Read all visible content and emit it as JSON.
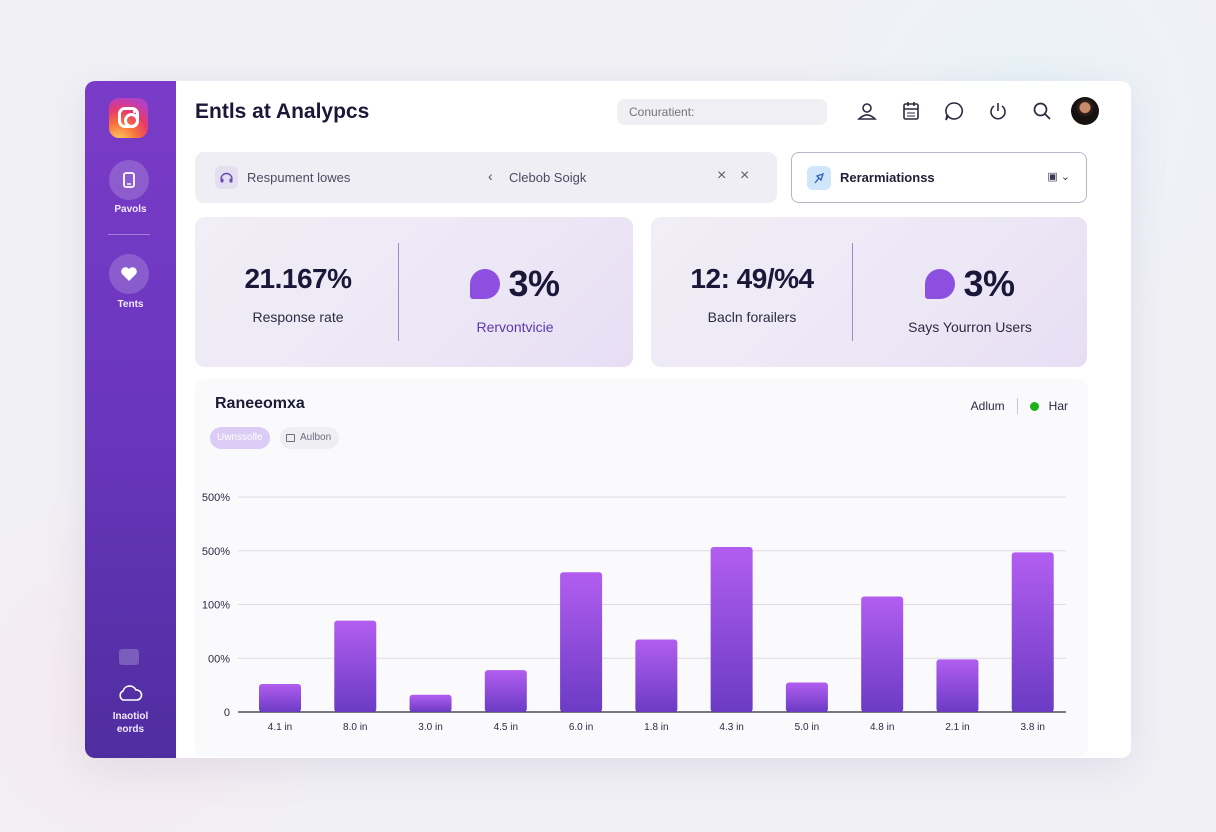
{
  "app": {
    "title": "Entls at Analypcs"
  },
  "sidebar": {
    "items": [
      {
        "label": "Pavols",
        "icon": "phone-icon"
      },
      {
        "label": "Tents",
        "icon": "heart-icon"
      }
    ],
    "bottom_label_line1": "Inaotiol",
    "bottom_label_line2": "eords",
    "bottom_icon": "cloud-icon"
  },
  "header": {
    "search_placeholder": "Conuratient:",
    "icons": [
      "user-icon",
      "calendar-icon",
      "chat-icon",
      "power-icon",
      "search-icon",
      "avatar"
    ]
  },
  "filter": {
    "label": "Respument lowes",
    "value": "Clebob Soigk"
  },
  "dropdown": {
    "label": "Rerarmiationss"
  },
  "metrics": [
    {
      "value": "21.167%",
      "label": "Response rate"
    },
    {
      "value": "3%",
      "label": "Rervontvicie"
    },
    {
      "value": "12: 49/%4",
      "label": "Bacln forailers"
    },
    {
      "value": "3%",
      "label": "Says Yourron Users"
    }
  ],
  "chart_section": {
    "title": "Raneeomxa",
    "pill_active": "Uwnssolle",
    "pill_inactive": "Aulbon",
    "legend_left": "Adlum",
    "legend_right": "Har",
    "legend_color": "#1ab31a"
  },
  "chart_data": {
    "type": "bar",
    "categories": [
      "4.1 in",
      "8.0 in",
      "3.0 in",
      "4.5 in",
      "6.0 in",
      "1.8 in",
      "4.3 in",
      "5.0 in",
      "4.8 in",
      "2.1 in",
      "3.8 in"
    ],
    "values": [
      0.52,
      1.7,
      0.32,
      0.78,
      2.6,
      1.35,
      3.07,
      0.55,
      2.15,
      0.98,
      2.97
    ],
    "ytick_labels": [
      "0",
      "00%",
      "100%",
      "500%",
      "500%"
    ],
    "ylim": [
      0,
      4
    ],
    "grid": true,
    "bar_color_top": "#b25ef0",
    "bar_color_bottom": "#6b3bc4"
  }
}
